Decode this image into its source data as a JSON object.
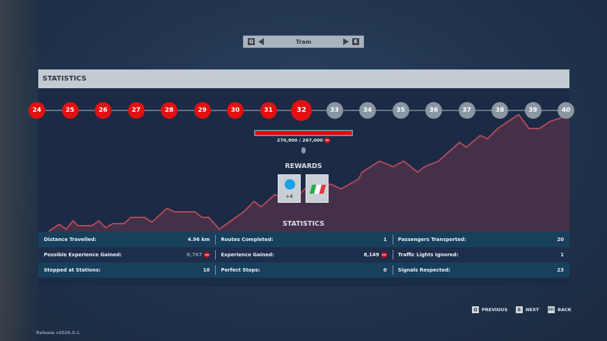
{
  "vehicle_selector": {
    "prev_key": "Q",
    "next_key": "E",
    "label": "Tram"
  },
  "panel": {
    "title": "STATISTICS"
  },
  "levels": {
    "items": [
      "24",
      "25",
      "26",
      "27",
      "28",
      "29",
      "30",
      "31",
      "32",
      "33",
      "34",
      "35",
      "36",
      "37",
      "38",
      "39",
      "40"
    ],
    "current": "32",
    "unlocked_up_to": "32"
  },
  "progress": {
    "text": "270,900 / 267,000",
    "currency": "TSP",
    "fraction": 1.0
  },
  "rewards": {
    "title": "REWARDS",
    "items": [
      {
        "icon": "vehicle-swap-icon",
        "label": "+4"
      },
      {
        "icon": "italian-flag-livery-icon",
        "label": ""
      }
    ]
  },
  "stats": {
    "title": "STATISTICS",
    "rows": [
      [
        {
          "label": "Distance Travelled:",
          "value": "4.96 km"
        },
        {
          "label": "Routes Completed:",
          "value": "1"
        },
        {
          "label": "Passengers Transported:",
          "value": "20"
        }
      ],
      [
        {
          "label": "Possible Experience Gained:",
          "value": "8,767",
          "tsp": true
        },
        {
          "label": "Experience Gained:",
          "value": "8,149",
          "tsp": true
        },
        {
          "label": "Traffic Lights Ignored:",
          "value": "1"
        }
      ],
      [
        {
          "label": "Stopped at Stations:",
          "value": "10"
        },
        {
          "label": "Perfect Stops:",
          "value": "0"
        },
        {
          "label": "Signals Respected:",
          "value": "23"
        }
      ]
    ]
  },
  "footer": {
    "previous": {
      "key": "Q",
      "label": "PREVIOUS"
    },
    "next": {
      "key": "E",
      "label": "NEXT"
    },
    "back": {
      "key": "ESC",
      "label": "BACK"
    }
  },
  "release": "Release v2026.0.1",
  "colors": {
    "accent_red": "#e31010",
    "locked_grey": "#8a96a2",
    "header_bg": "#c3ccd3"
  }
}
